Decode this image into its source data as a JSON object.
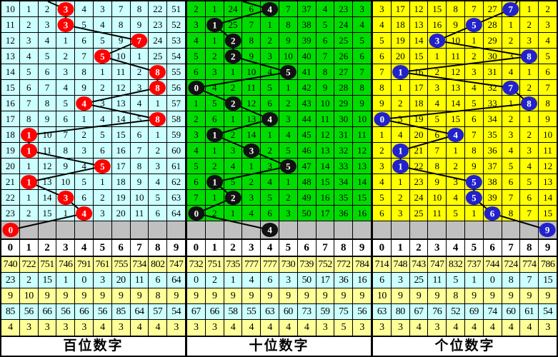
{
  "digit_header": [
    "0",
    "1",
    "2",
    "3",
    "4",
    "5",
    "6",
    "7",
    "8",
    "9"
  ],
  "colors": {
    "grid_line": "#000000",
    "pending_row_bg": "#C0C0C0",
    "header_bg": "#FFFFFF",
    "label_bg": "#FFFFFF",
    "line_color": "#000000",
    "stats_row_colors": [
      "#FFFF99",
      "#CCFFFF",
      "#FFFF99",
      "#CCFFFF",
      "#FFFF99"
    ]
  },
  "panels": [
    {
      "id": "hundreds",
      "label": "百位数字",
      "bg": "#CCFFFF",
      "ball_color": "#FF0000",
      "entry_x": 65,
      "pending_ball": 0,
      "rows": [
        {
          "cells": [
            "10",
            "1",
            "2",
            "3",
            "4",
            "3",
            "7",
            "8",
            "22",
            "51"
          ],
          "ball": 3
        },
        {
          "cells": [
            "11",
            "2",
            "3",
            "3",
            "5",
            "4",
            "8",
            "9",
            "23",
            "52"
          ],
          "ball": 3
        },
        {
          "cells": [
            "12",
            "3",
            "4",
            "1",
            "6",
            "5",
            "9",
            "7",
            "24",
            "53"
          ],
          "ball": 7
        },
        {
          "cells": [
            "13",
            "4",
            "5",
            "2",
            "7",
            "5",
            "10",
            "1",
            "25",
            "54"
          ],
          "ball": 5
        },
        {
          "cells": [
            "14",
            "5",
            "6",
            "3",
            "8",
            "1",
            "11",
            "2",
            "8",
            "55"
          ],
          "ball": 8
        },
        {
          "cells": [
            "15",
            "6",
            "7",
            "4",
            "9",
            "2",
            "12",
            "3",
            "8",
            "56"
          ],
          "ball": 8
        },
        {
          "cells": [
            "16",
            "7",
            "8",
            "5",
            "4",
            "3",
            "13",
            "4",
            "1",
            "57"
          ],
          "ball": 4
        },
        {
          "cells": [
            "17",
            "8",
            "9",
            "6",
            "1",
            "4",
            "14",
            "5",
            "8",
            "58"
          ],
          "ball": 8
        },
        {
          "cells": [
            "18",
            "1",
            "10",
            "7",
            "2",
            "5",
            "15",
            "6",
            "1",
            "59"
          ],
          "ball": 1
        },
        {
          "cells": [
            "19",
            "1",
            "11",
            "8",
            "3",
            "6",
            "16",
            "7",
            "2",
            "60"
          ],
          "ball": 1
        },
        {
          "cells": [
            "20",
            "1",
            "12",
            "9",
            "4",
            "5",
            "17",
            "8",
            "3",
            "61"
          ],
          "ball": 5
        },
        {
          "cells": [
            "21",
            "1",
            "13",
            "10",
            "5",
            "1",
            "18",
            "9",
            "4",
            "62"
          ],
          "ball": 1
        },
        {
          "cells": [
            "22",
            "1",
            "14",
            "3",
            "6",
            "2",
            "19",
            "10",
            "5",
            "63"
          ],
          "ball": 3
        },
        {
          "cells": [
            "23",
            "2",
            "15",
            "1",
            "4",
            "3",
            "20",
            "11",
            "6",
            "64"
          ],
          "ball": 4
        }
      ],
      "stats": [
        [
          "740",
          "722",
          "751",
          "746",
          "791",
          "761",
          "755",
          "734",
          "802",
          "747"
        ],
        [
          "23",
          "2",
          "15",
          "1",
          "0",
          "3",
          "20",
          "11",
          "6",
          "64"
        ],
        [
          "9",
          "10",
          "9",
          "9",
          "9",
          "9",
          "9",
          "9",
          "8",
          "9"
        ],
        [
          "85",
          "56",
          "66",
          "56",
          "66",
          "56",
          "85",
          "64",
          "57",
          "54"
        ],
        [
          "4",
          "3",
          "3",
          "3",
          "3",
          "4",
          "3",
          "4",
          "4",
          "3"
        ]
      ]
    },
    {
      "id": "tens",
      "label": "十位数字",
      "bg": "#00DC00",
      "ball_color": "#111111",
      "entry_x": 78,
      "pending_ball": 4,
      "rows": [
        {
          "cells": [
            "2",
            "1",
            "24",
            "6",
            "4",
            "7",
            "37",
            "4",
            "23",
            "3"
          ],
          "ball": 4
        },
        {
          "cells": [
            "3",
            "1",
            "25",
            "7",
            "1",
            "8",
            "38",
            "5",
            "24",
            "4"
          ],
          "ball": 1
        },
        {
          "cells": [
            "4",
            "1",
            "2",
            "8",
            "2",
            "9",
            "39",
            "6",
            "25",
            "5"
          ],
          "ball": 2
        },
        {
          "cells": [
            "5",
            "2",
            "2",
            "9",
            "3",
            "10",
            "40",
            "7",
            "26",
            "6"
          ],
          "ball": 2
        },
        {
          "cells": [
            "6",
            "3",
            "1",
            "10",
            "4",
            "5",
            "41",
            "8",
            "27",
            "7"
          ],
          "ball": 5
        },
        {
          "cells": [
            "0",
            "4",
            "2",
            "11",
            "5",
            "1",
            "42",
            "9",
            "28",
            "8"
          ],
          "ball": 0
        },
        {
          "cells": [
            "1",
            "5",
            "2",
            "12",
            "6",
            "2",
            "43",
            "10",
            "29",
            "9"
          ],
          "ball": 2
        },
        {
          "cells": [
            "2",
            "6",
            "1",
            "13",
            "4",
            "3",
            "44",
            "11",
            "30",
            "10"
          ],
          "ball": 4
        },
        {
          "cells": [
            "3",
            "1",
            "2",
            "14",
            "1",
            "4",
            "45",
            "12",
            "31",
            "11"
          ],
          "ball": 1
        },
        {
          "cells": [
            "4",
            "1",
            "3",
            "3",
            "2",
            "5",
            "46",
            "13",
            "32",
            "12"
          ],
          "ball": 3
        },
        {
          "cells": [
            "5",
            "2",
            "4",
            "1",
            "3",
            "5",
            "47",
            "14",
            "33",
            "13"
          ],
          "ball": 5
        },
        {
          "cells": [
            "6",
            "1",
            "5",
            "2",
            "4",
            "1",
            "48",
            "15",
            "34",
            "14"
          ],
          "ball": 1
        },
        {
          "cells": [
            "7",
            "1",
            "2",
            "3",
            "5",
            "2",
            "49",
            "16",
            "35",
            "15"
          ],
          "ball": 2
        },
        {
          "cells": [
            "0",
            "2",
            "1",
            "4",
            "6",
            "3",
            "50",
            "17",
            "36",
            "16"
          ],
          "ball": 0
        }
      ],
      "stats": [
        [
          "732",
          "751",
          "735",
          "777",
          "777",
          "730",
          "739",
          "752",
          "772",
          "784"
        ],
        [
          "0",
          "2",
          "1",
          "4",
          "6",
          "3",
          "50",
          "17",
          "36",
          "16"
        ],
        [
          "9",
          "9",
          "9",
          "9",
          "9",
          "9",
          "9",
          "9",
          "9",
          "9"
        ],
        [
          "67",
          "66",
          "58",
          "55",
          "63",
          "60",
          "73",
          "59",
          "75",
          "56"
        ],
        [
          "3",
          "3",
          "4",
          "4",
          "4",
          "4",
          "4",
          "3",
          "5",
          "3"
        ]
      ]
    },
    {
      "id": "units",
      "label": "个位数字",
      "bg": "#FFFF00",
      "ball_color": "#2222CC",
      "entry_x": 202,
      "pending_ball": 9,
      "rows": [
        {
          "cells": [
            "3",
            "17",
            "12",
            "15",
            "8",
            "7",
            "27",
            "7",
            "1",
            "2"
          ],
          "ball": 7
        },
        {
          "cells": [
            "4",
            "18",
            "13",
            "16",
            "9",
            "5",
            "28",
            "1",
            "2",
            "3"
          ],
          "ball": 5
        },
        {
          "cells": [
            "5",
            "19",
            "14",
            "3",
            "10",
            "1",
            "29",
            "2",
            "3",
            "4"
          ],
          "ball": 3
        },
        {
          "cells": [
            "6",
            "20",
            "15",
            "1",
            "11",
            "2",
            "30",
            "3",
            "8",
            "5"
          ],
          "ball": 8
        },
        {
          "cells": [
            "7",
            "1",
            "16",
            "2",
            "12",
            "3",
            "31",
            "4",
            "1",
            "6"
          ],
          "ball": 1
        },
        {
          "cells": [
            "8",
            "1",
            "17",
            "3",
            "13",
            "4",
            "32",
            "7",
            "2",
            "7"
          ],
          "ball": 7
        },
        {
          "cells": [
            "9",
            "2",
            "18",
            "4",
            "14",
            "5",
            "33",
            "1",
            "8",
            "8"
          ],
          "ball": 8
        },
        {
          "cells": [
            "0",
            "3",
            "19",
            "5",
            "15",
            "6",
            "34",
            "2",
            "1",
            "9"
          ],
          "ball": 0
        },
        {
          "cells": [
            "1",
            "4",
            "20",
            "6",
            "4",
            "7",
            "35",
            "3",
            "2",
            "10"
          ],
          "ball": 4
        },
        {
          "cells": [
            "2",
            "1",
            "21",
            "7",
            "1",
            "8",
            "36",
            "4",
            "3",
            "11"
          ],
          "ball": 1
        },
        {
          "cells": [
            "3",
            "1",
            "22",
            "8",
            "2",
            "9",
            "37",
            "5",
            "4",
            "12"
          ],
          "ball": 1
        },
        {
          "cells": [
            "4",
            "1",
            "23",
            "9",
            "3",
            "5",
            "38",
            "6",
            "5",
            "13"
          ],
          "ball": 5
        },
        {
          "cells": [
            "5",
            "2",
            "24",
            "10",
            "4",
            "5",
            "39",
            "7",
            "6",
            "14"
          ],
          "ball": 5
        },
        {
          "cells": [
            "6",
            "3",
            "25",
            "11",
            "5",
            "1",
            "6",
            "8",
            "7",
            "15"
          ],
          "ball": 6
        }
      ],
      "stats": [
        [
          "714",
          "748",
          "743",
          "747",
          "832",
          "737",
          "744",
          "724",
          "774",
          "786"
        ],
        [
          "6",
          "3",
          "25",
          "11",
          "5",
          "1",
          "0",
          "8",
          "7",
          "15"
        ],
        [
          "10",
          "9",
          "9",
          "9",
          "8",
          "9",
          "9",
          "9",
          "9",
          "9"
        ],
        [
          "63",
          "80",
          "67",
          "76",
          "52",
          "69",
          "74",
          "60",
          "61",
          "54"
        ],
        [
          "3",
          "3",
          "4",
          "3",
          "4",
          "4",
          "4",
          "4",
          "4",
          "3"
        ]
      ]
    }
  ],
  "chart_data": {
    "type": "table",
    "x_categories": [
      "0",
      "1",
      "2",
      "3",
      "4",
      "5",
      "6",
      "7",
      "8",
      "9"
    ],
    "series": [
      {
        "name": "百位数字",
        "drawn_digits": [
          3,
          3,
          7,
          5,
          8,
          8,
          4,
          8,
          1,
          1,
          5,
          1,
          3,
          4,
          0
        ]
      },
      {
        "name": "十位数字",
        "drawn_digits": [
          4,
          1,
          2,
          2,
          5,
          0,
          2,
          4,
          1,
          3,
          5,
          1,
          2,
          0,
          4
        ]
      },
      {
        "name": "个位数字",
        "drawn_digits": [
          7,
          5,
          3,
          8,
          1,
          7,
          8,
          0,
          4,
          1,
          1,
          5,
          5,
          6,
          9
        ]
      }
    ],
    "notes_rows_per_panel": [
      "appearance_totals",
      "current_miss",
      "max_value_9ish",
      "max_miss",
      "max_consecutive"
    ]
  }
}
